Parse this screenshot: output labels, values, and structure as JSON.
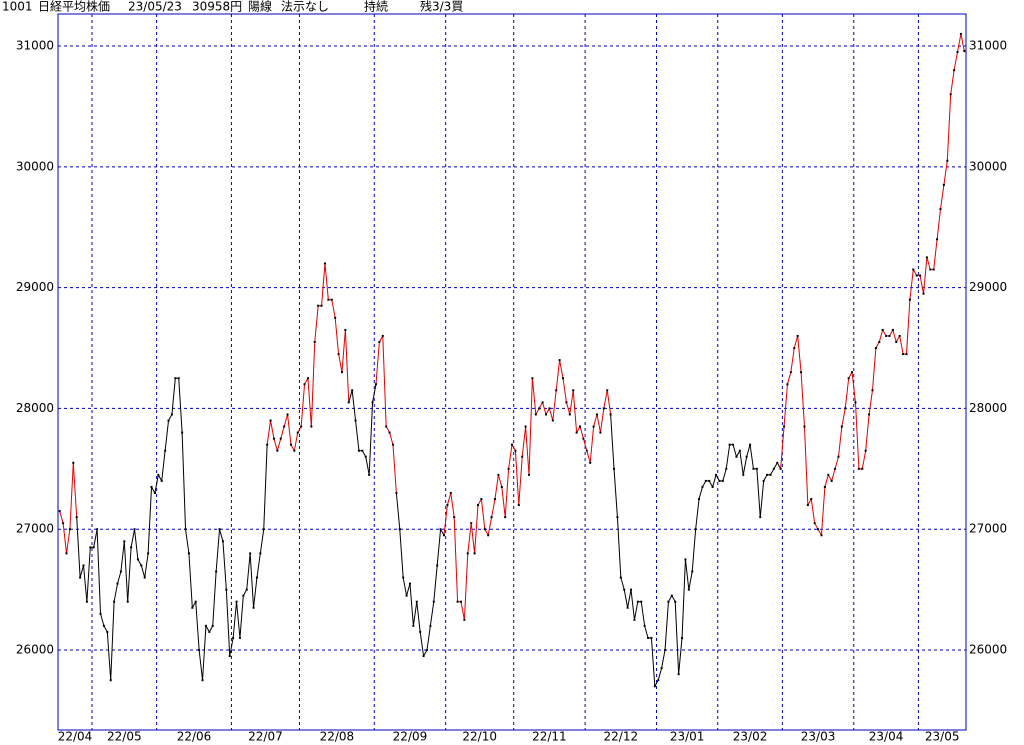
{
  "header": [
    "1001",
    "日経平均株価",
    "23/05/23",
    "30958円",
    "陽線",
    "法示なし",
    "持続",
    "残3/3買"
  ],
  "chart_data": {
    "type": "line",
    "ylim": [
      25338,
      31265
    ],
    "yticks": [
      26000,
      27000,
      28000,
      29000,
      30000,
      31000
    ],
    "grid": true,
    "color": "#000000",
    "highlight_color": "#e00000",
    "highlight_ranges": [
      [
        0,
        5
      ],
      [
        61,
        85
      ],
      [
        93,
        99
      ],
      [
        113,
        162
      ],
      [
        212,
        266
      ]
    ],
    "months": [
      "22/04",
      "22/05",
      "22/06",
      "22/07",
      "22/08",
      "22/09",
      "22/10",
      "22/11",
      "22/12",
      "23/01",
      "23/02",
      "23/03",
      "23/04",
      "23/05"
    ],
    "month_starts": [
      10,
      29,
      51,
      71,
      93,
      114,
      134,
      155,
      176,
      194,
      213,
      234,
      253
    ],
    "values": [
      27150,
      27050,
      26800,
      27000,
      27550,
      27100,
      26600,
      26700,
      26400,
      26850,
      26850,
      27000,
      26300,
      26200,
      26150,
      25750,
      26400,
      26550,
      26650,
      26900,
      26400,
      26850,
      27000,
      26750,
      26700,
      26600,
      26800,
      27350,
      27300,
      27450,
      27400,
      27650,
      27900,
      27950,
      28250,
      28250,
      27800,
      27000,
      26800,
      26350,
      26400,
      26000,
      25750,
      26200,
      26150,
      26200,
      26650,
      27000,
      26900,
      26500,
      25950,
      26100,
      26400,
      26100,
      26450,
      26500,
      26800,
      26350,
      26600,
      26800,
      27000,
      27700,
      27900,
      27750,
      27650,
      27750,
      27850,
      27950,
      27700,
      27650,
      27800,
      27850,
      28200,
      28250,
      27850,
      28550,
      28850,
      28850,
      29200,
      28900,
      28900,
      28750,
      28450,
      28300,
      28650,
      28050,
      28150,
      27900,
      27650,
      27650,
      27600,
      27450,
      28050,
      28200,
      28550,
      28600,
      27850,
      27800,
      27700,
      27300,
      27000,
      26600,
      26450,
      26550,
      26200,
      26400,
      26150,
      25950,
      26000,
      26200,
      26400,
      26700,
      27000,
      26950,
      27200,
      27300,
      27100,
      26400,
      26400,
      26250,
      26800,
      27050,
      26800,
      27200,
      27250,
      27000,
      26950,
      27100,
      27250,
      27450,
      27350,
      27100,
      27500,
      27700,
      27650,
      27200,
      27600,
      27850,
      27450,
      28250,
      27950,
      28000,
      28050,
      27950,
      28000,
      27900,
      28150,
      28400,
      28250,
      28050,
      27950,
      28150,
      27800,
      27850,
      27750,
      27650,
      27550,
      27850,
      27950,
      27800,
      28000,
      28150,
      27950,
      27500,
      27100,
      26600,
      26500,
      26350,
      26500,
      26250,
      26400,
      26400,
      26200,
      26100,
      26100,
      25700,
      25750,
      25850,
      26000,
      26400,
      26450,
      26400,
      25800,
      26100,
      26750,
      26500,
      26650,
      27000,
      27250,
      27350,
      27400,
      27400,
      27350,
      27450,
      27400,
      27400,
      27500,
      27700,
      27700,
      27600,
      27650,
      27450,
      27600,
      27700,
      27500,
      27500,
      27100,
      27400,
      27450,
      27450,
      27500,
      27550,
      27500,
      27850,
      28200,
      28300,
      28500,
      28600,
      28300,
      27850,
      27200,
      27250,
      27050,
      27000,
      26950,
      27350,
      27450,
      27400,
      27500,
      27600,
      27850,
      28000,
      28250,
      28300,
      28050,
      27500,
      27500,
      27650,
      27950,
      28150,
      28500,
      28550,
      28650,
      28600,
      28600,
      28650,
      28550,
      28600,
      28450,
      28450,
      28900,
      29150,
      29100,
      29100,
      28950,
      29250,
      29150,
      29150,
      29400,
      29650,
      29850,
      30050,
      30600,
      30800,
      30950,
      31100,
      30958
    ]
  }
}
